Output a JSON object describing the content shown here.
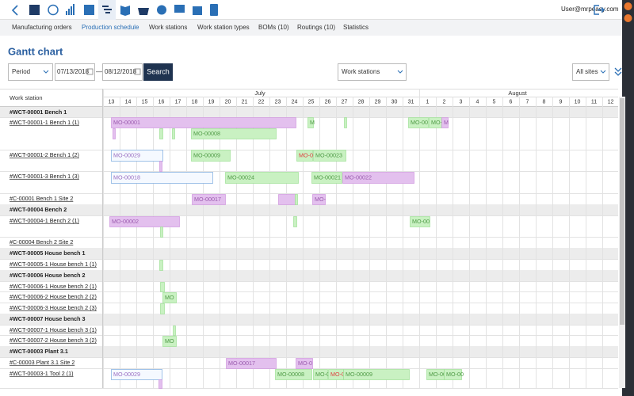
{
  "header": {
    "user": "User@mrpeasy.com"
  },
  "tabs": [
    "Manufacturing orders",
    "Production schedule",
    "Work stations",
    "Work station types",
    "BOMs (10)",
    "Routings (10)",
    "Statistics"
  ],
  "title": "Gantt chart",
  "filters": {
    "period": "Period",
    "date_from": "07/13/2018",
    "separator": "—",
    "date_to": "08/12/2018",
    "search": "Search",
    "group": "Work stations",
    "site": "All sites"
  },
  "gantt": {
    "column_header": "Work station",
    "months": [
      "July",
      "August"
    ],
    "days": [
      13,
      14,
      15,
      16,
      17,
      18,
      19,
      20,
      21,
      22,
      23,
      24,
      25,
      26,
      27,
      28,
      29,
      30,
      31,
      1,
      2,
      3,
      4,
      5,
      6,
      7,
      8,
      9,
      10,
      11,
      12
    ],
    "rows": [
      {
        "label": "#WCT-00001 Bench 1",
        "group": true
      },
      {
        "label": "#WCT-00001-1 Bench 1 (1)",
        "bars": [
          "MO-00001",
          "M",
          "MO-00",
          "MO-0",
          "M",
          "MO-00008"
        ]
      },
      {
        "label": "#WCT-00001-2 Bench 1 (2)",
        "bars": [
          "MO-00029",
          "MO-00009",
          "MO-00",
          "MO-00023"
        ]
      },
      {
        "label": "#WCT-00001-3 Bench 1 (3)",
        "bars": [
          "MO-00018",
          "MO-00024",
          "MO-00021",
          "MO-00022"
        ]
      },
      {
        "label": "#C-00001 Bench 1 Site 2",
        "bars": [
          "MO-00017",
          "MO-"
        ]
      },
      {
        "label": "#WCT-00004 Bench 2",
        "group": true
      },
      {
        "label": "#WCT-00004-1 Bench 2 (1)",
        "bars": [
          "MO-00002",
          "MO-00"
        ]
      },
      {
        "label": "#C-00004 Bench 2 Site 2"
      },
      {
        "label": "#WCT-00005 House bench 1",
        "group": true
      },
      {
        "label": "#WCT-00005-1 House bench 1 (1)"
      },
      {
        "label": "#WCT-00006 House bench 2",
        "group": true
      },
      {
        "label": "#WCT-00006-1 House bench 2 (1)"
      },
      {
        "label": "#WCT-00006-2 House bench 2 (2)",
        "bars": [
          "MO"
        ]
      },
      {
        "label": "#WCT-00006-3 House bench 2 (3)"
      },
      {
        "label": "#WCT-00007 House bench 3",
        "group": true
      },
      {
        "label": "#WCT-00007-1 House bench 3 (1)"
      },
      {
        "label": "#WCT-00007-2 House bench 3 (2)",
        "bars": [
          "MO"
        ]
      },
      {
        "label": "#WCT-00003 Plant 3.1",
        "group": true
      },
      {
        "label": "#C-00003 Plant 3.1 Site 2",
        "bars": [
          "MO-00017",
          "MO-0"
        ]
      },
      {
        "label": "#WCT-00003-1 Tool 2 (1)",
        "bars": [
          "MO-00029",
          "MO-00008",
          "MO-0",
          "MO-0",
          "MO-00009",
          "MO-00",
          "MO-00"
        ]
      }
    ]
  }
}
